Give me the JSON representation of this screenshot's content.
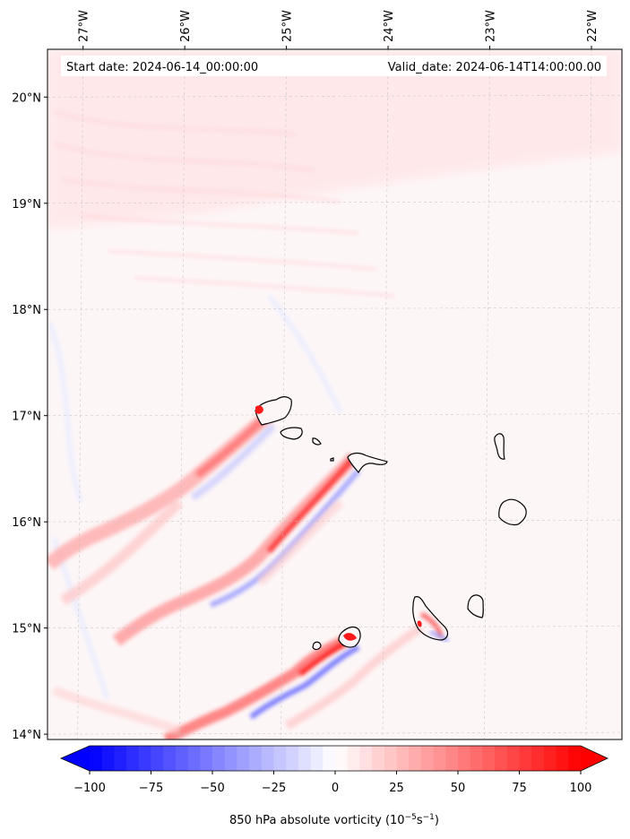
{
  "info": {
    "start_date": "Start date: 2024-06-14_00:00:00",
    "valid_date": "Valid_date: 2024-06-14T14:00:00.00"
  },
  "map": {
    "lon_ticks": [
      "27°W",
      "26°W",
      "25°W",
      "24°W",
      "23°W",
      "22°W"
    ],
    "lat_ticks": [
      "20°N",
      "19°N",
      "18°N",
      "17°N",
      "16°N",
      "15°N",
      "14°N"
    ],
    "lon_values": [
      -27,
      -26,
      -25,
      -24,
      -23,
      -22
    ],
    "lat_values": [
      20,
      19,
      18,
      17,
      16,
      15,
      14
    ],
    "extent": {
      "lon_min": -27.35,
      "lon_max": -21.7,
      "lat_min": 13.95,
      "lat_max": 20.45
    }
  },
  "colorbar": {
    "title_prefix": "850 hPa absolute vorticity (10",
    "title_exp1": "−5",
    "title_mid": "s",
    "title_exp2": "−1",
    "title_suffix": ")",
    "tick_labels": [
      "−100",
      "−75",
      "−50",
      "−25",
      "0",
      "25",
      "50",
      "75",
      "100"
    ],
    "tick_values": [
      -100,
      -75,
      -50,
      -25,
      0,
      25,
      50,
      75,
      100
    ],
    "range": [
      -100,
      100
    ],
    "levels": 41,
    "colors": {
      "neg": "#0000ff",
      "mid": "#ffffff",
      "pos": "#ff0000"
    }
  }
}
